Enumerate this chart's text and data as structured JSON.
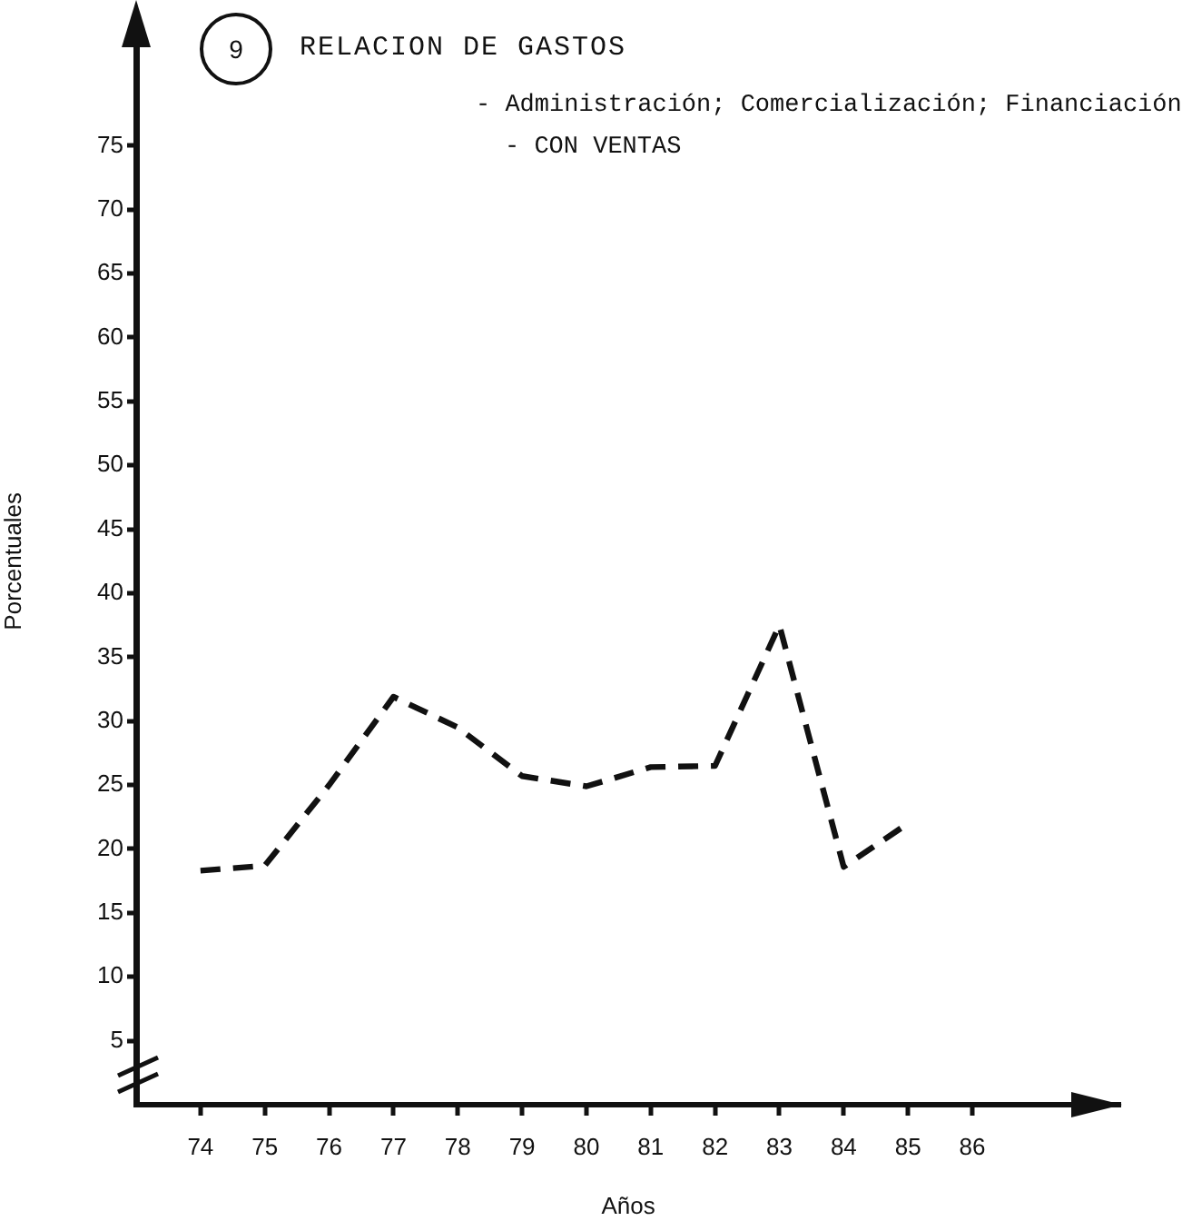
{
  "chart_data": {
    "type": "line",
    "title": "RELACION DE GASTOS",
    "subtitle": "- Administración; Comercialización; Financiación - CON VENTAS",
    "xlabel": "Años",
    "ylabel": "Porcentuales",
    "annotations": [
      "9"
    ],
    "x": [
      74,
      75,
      76,
      77,
      78,
      79,
      80,
      81,
      82,
      83,
      84,
      85
    ],
    "series": [
      {
        "color": "#111111",
        "values": [
          18.3,
          18.7,
          25,
          31.9,
          29.5,
          25.7,
          24.9,
          26.4,
          26.5,
          37.5,
          18.6,
          22
        ]
      }
    ],
    "xlim": [
      73,
      88.3
    ],
    "xticks": [
      74,
      75,
      76,
      77,
      78,
      79,
      80,
      81,
      82,
      83,
      84,
      85,
      86
    ],
    "ylim": [
      0,
      85
    ],
    "yticks": [
      5,
      10,
      15,
      20,
      25,
      30,
      35,
      40,
      45,
      50,
      55,
      60,
      65,
      70,
      75
    ],
    "marker": "none",
    "line_style": "dashed"
  }
}
